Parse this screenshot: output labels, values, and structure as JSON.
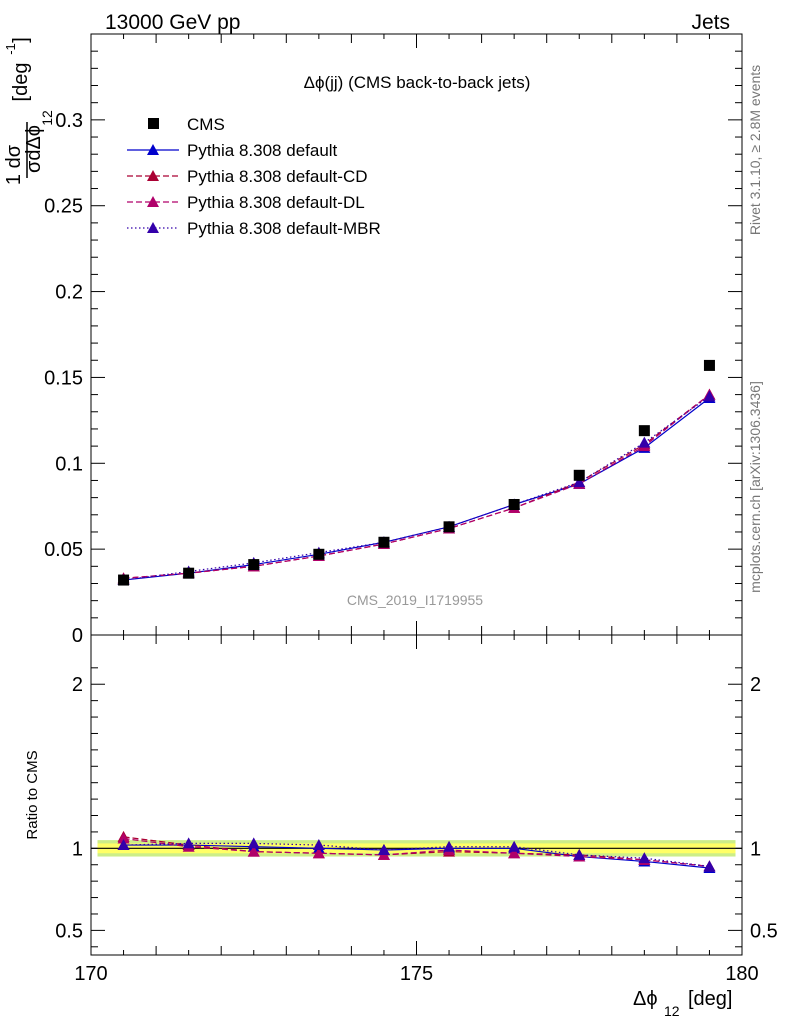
{
  "header": {
    "left": "13000 GeV pp",
    "right": "Jets"
  },
  "side_labels": {
    "rivet": "Rivet 3.1.10, ≥ 2.8M events",
    "mcplots": "mcplots.cern.ch [arXiv:1306.3436]"
  },
  "colors": {
    "cms": "#000000",
    "default": "#0000cc",
    "default_cd": "#aa0033",
    "default_dl": "#b0006a",
    "default_mbr": "#3300aa",
    "band_inner": "#ffff66",
    "band_outer": "#ccee88"
  },
  "chart_data": [
    {
      "type": "line",
      "title": "Δϕ(jj) (CMS back-to-back jets)",
      "analysis_id": "CMS_2019_I1719955",
      "ylabel_parts": {
        "numerator": "1 dσ",
        "denominator": "σdΔϕ",
        "subscript": "12",
        "unit": "[deg",
        "unit_exp": "-1",
        "unit_close": "]"
      },
      "xlim": [
        170,
        180
      ],
      "ylim": [
        0,
        0.35
      ],
      "yticks": [
        0,
        0.05,
        0.1,
        0.15,
        0.2,
        0.25,
        0.3
      ],
      "ytick_labels": [
        "0",
        "0.05",
        "0.1",
        "0.15",
        "0.2",
        "0.25",
        "0.3"
      ],
      "x": [
        170.5,
        171.5,
        172.5,
        173.5,
        174.5,
        175.5,
        176.5,
        177.5,
        178.5,
        179.5
      ],
      "series": [
        {
          "name": "CMS",
          "style": "marker",
          "color": "#000000",
          "values": [
            0.032,
            0.036,
            0.041,
            0.047,
            0.054,
            0.063,
            0.076,
            0.093,
            0.119,
            0.157
          ]
        },
        {
          "name": "Pythia 8.308 default",
          "style": "solid",
          "color": "#0000cc",
          "values": [
            0.032,
            0.036,
            0.041,
            0.047,
            0.054,
            0.063,
            0.076,
            0.088,
            0.109,
            0.138
          ]
        },
        {
          "name": "Pythia 8.308 default-CD",
          "style": "dashed",
          "color": "#aa0033",
          "values": [
            0.033,
            0.036,
            0.04,
            0.046,
            0.053,
            0.062,
            0.074,
            0.089,
            0.111,
            0.14
          ]
        },
        {
          "name": "Pythia 8.308 default-DL",
          "style": "dashed",
          "color": "#b0006a",
          "values": [
            0.033,
            0.036,
            0.04,
            0.046,
            0.053,
            0.062,
            0.074,
            0.088,
            0.11,
            0.14
          ]
        },
        {
          "name": "Pythia 8.308 default-MBR",
          "style": "dotted",
          "color": "#3300aa",
          "values": [
            0.032,
            0.037,
            0.042,
            0.048,
            0.054,
            0.063,
            0.076,
            0.089,
            0.112,
            0.139
          ]
        }
      ]
    },
    {
      "type": "line",
      "ylabel": "Ratio to CMS",
      "xlabel_parts": {
        "main": "Δϕ",
        "subscript": "12",
        "unit": "[deg]"
      },
      "xlim": [
        170,
        180
      ],
      "ylim": [
        0.35,
        2.3
      ],
      "xticks": [
        170,
        175,
        180
      ],
      "xtick_labels": [
        "170",
        "175",
        "180"
      ],
      "yticks": [
        0.5,
        1,
        2
      ],
      "ytick_labels": [
        "0.5",
        "1",
        "2"
      ],
      "x": [
        170.5,
        171.5,
        172.5,
        173.5,
        174.5,
        175.5,
        176.5,
        177.5,
        178.5,
        179.5
      ],
      "band_inner": 0.03,
      "band_outer": 0.05,
      "series": [
        {
          "name": "Pythia 8.308 default",
          "style": "solid",
          "color": "#0000cc",
          "values": [
            1.02,
            1.02,
            1.01,
            1.0,
            0.99,
            1.0,
            1.0,
            0.95,
            0.92,
            0.88
          ]
        },
        {
          "name": "Pythia 8.308 default-CD",
          "style": "dashed",
          "color": "#aa0033",
          "values": [
            1.07,
            1.02,
            0.98,
            0.97,
            0.96,
            0.98,
            0.97,
            0.96,
            0.93,
            0.89
          ]
        },
        {
          "name": "Pythia 8.308 default-DL",
          "style": "dashed",
          "color": "#b0006a",
          "values": [
            1.06,
            1.01,
            0.98,
            0.97,
            0.96,
            0.99,
            0.97,
            0.95,
            0.93,
            0.89
          ]
        },
        {
          "name": "Pythia 8.308 default-MBR",
          "style": "dotted",
          "color": "#3300aa",
          "values": [
            1.02,
            1.03,
            1.03,
            1.02,
            0.99,
            1.01,
            1.01,
            0.96,
            0.94,
            0.89
          ]
        }
      ]
    }
  ]
}
